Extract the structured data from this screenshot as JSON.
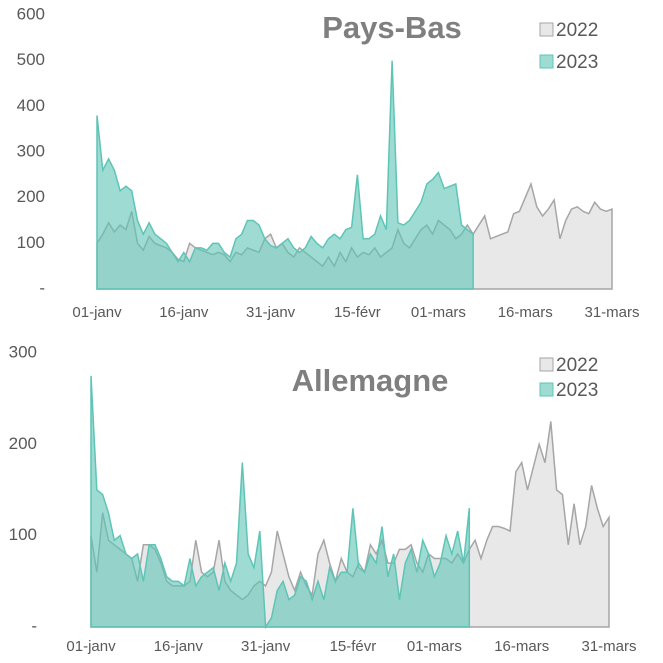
{
  "chart_data": [
    {
      "type": "area",
      "title": "Pays-Bas",
      "categories": [
        "01-janv",
        null,
        null,
        null,
        null,
        null,
        null,
        null,
        null,
        null,
        null,
        null,
        null,
        null,
        null,
        "16-janv",
        null,
        null,
        null,
        null,
        null,
        null,
        null,
        null,
        null,
        null,
        null,
        null,
        null,
        null,
        "31-janv",
        null,
        null,
        null,
        null,
        null,
        null,
        null,
        null,
        null,
        null,
        null,
        null,
        null,
        null,
        "15-févr",
        null,
        null,
        null,
        null,
        null,
        null,
        null,
        null,
        null,
        null,
        null,
        null,
        null,
        "01-mars",
        null,
        null,
        null,
        null,
        null,
        null,
        null,
        null,
        null,
        null,
        null,
        null,
        null,
        null,
        "16-mars",
        null,
        null,
        null,
        null,
        null,
        null,
        null,
        null,
        null,
        null,
        null,
        null,
        null,
        null,
        "31-mars"
      ],
      "series": [
        {
          "name": "2022",
          "color": "#a6a6a6",
          "fill": "#e8e8e8",
          "values": [
            100,
            120,
            145,
            125,
            140,
            130,
            170,
            100,
            85,
            115,
            100,
            95,
            90,
            80,
            65,
            60,
            100,
            90,
            85,
            80,
            75,
            80,
            75,
            60,
            80,
            75,
            90,
            85,
            80,
            110,
            120,
            90,
            100,
            80,
            70,
            90,
            80,
            70,
            60,
            50,
            70,
            50,
            80,
            60,
            90,
            70,
            80,
            75,
            90,
            70,
            80,
            90,
            130,
            100,
            90,
            110,
            130,
            140,
            120,
            150,
            140,
            130,
            110,
            120,
            140,
            120,
            140,
            160,
            110,
            115,
            120,
            125,
            165,
            170,
            200,
            230,
            180,
            160,
            175,
            195,
            110,
            150,
            175,
            180,
            170,
            165,
            190,
            175,
            170,
            175
          ]
        },
        {
          "name": "2023",
          "color": "#5ec4b6",
          "fill": "rgba(94,196,182,0.6)",
          "values": [
            380,
            260,
            285,
            260,
            215,
            225,
            215,
            150,
            120,
            145,
            120,
            110,
            100,
            80,
            60,
            80,
            60,
            90,
            90,
            85,
            100,
            100,
            80,
            70,
            110,
            120,
            150,
            150,
            140,
            110,
            95,
            90,
            100,
            110,
            90,
            80,
            90,
            115,
            100,
            90,
            110,
            120,
            110,
            130,
            135,
            250,
            110,
            110,
            120,
            160,
            130,
            500,
            145,
            140,
            150,
            170,
            190,
            230,
            240,
            255,
            220,
            225,
            230,
            140,
            130,
            120,
            null,
            null,
            null,
            null,
            null,
            null,
            null,
            null,
            null,
            null,
            null,
            null,
            null,
            null,
            null,
            null,
            null,
            null,
            null,
            null,
            null,
            null,
            null,
            null
          ]
        }
      ],
      "ylim": [
        0,
        600
      ],
      "yticks": [
        {
          "value": 0,
          "label": "-"
        },
        100,
        200,
        300,
        400,
        500,
        600
      ]
    },
    {
      "type": "area",
      "title": "Allemagne",
      "categories": [
        "01-janv",
        null,
        null,
        null,
        null,
        null,
        null,
        null,
        null,
        null,
        null,
        null,
        null,
        null,
        null,
        "16-janv",
        null,
        null,
        null,
        null,
        null,
        null,
        null,
        null,
        null,
        null,
        null,
        null,
        null,
        null,
        "31-janv",
        null,
        null,
        null,
        null,
        null,
        null,
        null,
        null,
        null,
        null,
        null,
        null,
        null,
        null,
        "15-févr",
        null,
        null,
        null,
        null,
        null,
        null,
        null,
        null,
        null,
        null,
        null,
        null,
        null,
        "01-mars",
        null,
        null,
        null,
        null,
        null,
        null,
        null,
        null,
        null,
        null,
        null,
        null,
        null,
        null,
        "16-mars",
        null,
        null,
        null,
        null,
        null,
        null,
        null,
        null,
        null,
        null,
        null,
        null,
        null,
        null,
        "31-mars"
      ],
      "series": [
        {
          "name": "2022",
          "color": "#a6a6a6",
          "fill": "#e8e8e8",
          "values": [
            100,
            60,
            125,
            95,
            90,
            85,
            80,
            75,
            50,
            90,
            90,
            85,
            70,
            50,
            45,
            45,
            45,
            50,
            95,
            60,
            55,
            60,
            95,
            50,
            40,
            35,
            30,
            35,
            45,
            50,
            45,
            60,
            105,
            80,
            55,
            40,
            60,
            45,
            35,
            80,
            95,
            70,
            50,
            75,
            60,
            55,
            70,
            60,
            90,
            80,
            95,
            70,
            70,
            85,
            85,
            90,
            70,
            60,
            80,
            75,
            75,
            75,
            70,
            80,
            70,
            85,
            95,
            75,
            95,
            110,
            110,
            108,
            105,
            170,
            180,
            150,
            175,
            200,
            180,
            225,
            150,
            145,
            90,
            135,
            90,
            110,
            155,
            130,
            110,
            120
          ]
        },
        {
          "name": "2023",
          "color": "#5ec4b6",
          "fill": "rgba(94,196,182,0.6)",
          "values": [
            275,
            150,
            145,
            125,
            95,
            100,
            80,
            75,
            80,
            50,
            90,
            90,
            75,
            55,
            50,
            50,
            45,
            75,
            45,
            55,
            60,
            65,
            40,
            70,
            50,
            70,
            180,
            80,
            65,
            105,
            0,
            10,
            40,
            50,
            30,
            35,
            55,
            50,
            30,
            50,
            30,
            65,
            50,
            60,
            60,
            130,
            65,
            60,
            80,
            70,
            110,
            55,
            80,
            30,
            70,
            85,
            60,
            95,
            80,
            55,
            70,
            100,
            80,
            105,
            70,
            130,
            null,
            null,
            null,
            null,
            null,
            null,
            null,
            null,
            null,
            null,
            null,
            null,
            null,
            null,
            null,
            null,
            null,
            null,
            null,
            null,
            null,
            null,
            null,
            null
          ]
        }
      ],
      "ylim": [
        0,
        300
      ],
      "yticks": [
        {
          "value": 0,
          "label": "-"
        },
        100,
        200,
        300
      ]
    }
  ]
}
